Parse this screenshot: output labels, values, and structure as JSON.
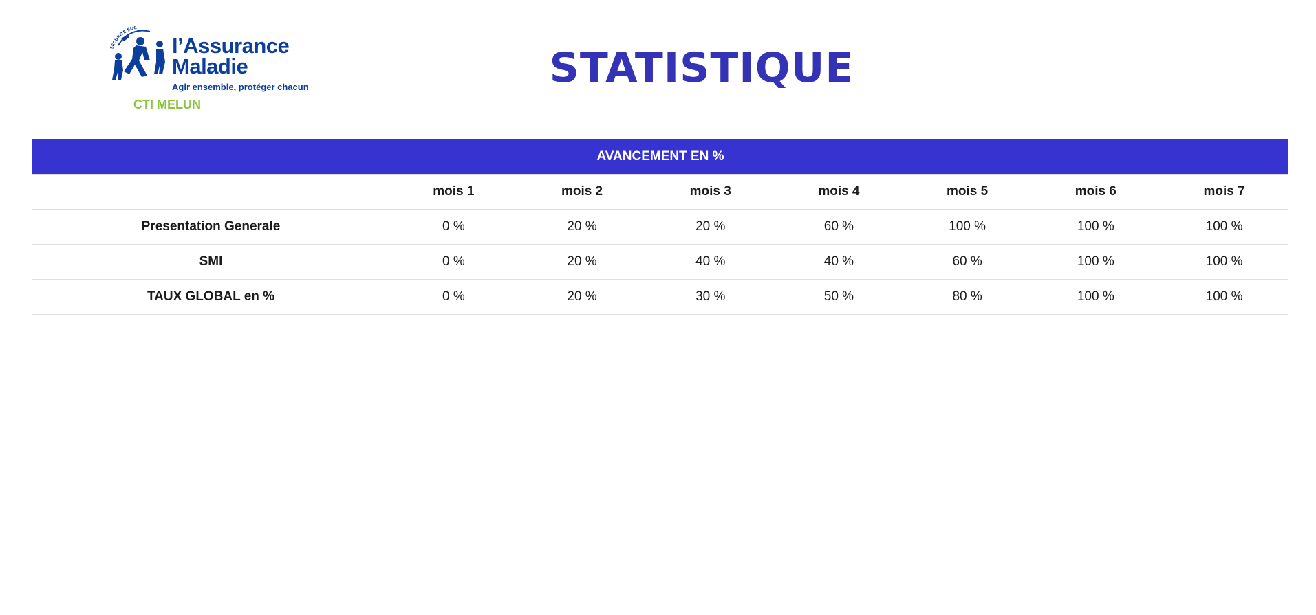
{
  "brand": {
    "name_line1": "l’Assurance",
    "name_line2": "Maladie",
    "tagline": "Agir ensemble, protéger chacun",
    "arc_text": "SÉCURITÉ SOCIALE",
    "site": "CTI MELUN"
  },
  "page": {
    "title": "STATISTIQUE"
  },
  "table": {
    "banner": "AVANCEMENT EN %",
    "corner": "",
    "columns": [
      "mois 1",
      "mois 2",
      "mois 3",
      "mois 4",
      "mois 5",
      "mois 6",
      "mois 7"
    ],
    "rows": [
      {
        "label": "Presentation Generale",
        "values": [
          "0 %",
          "20 %",
          "20 %",
          "60 %",
          "100 %",
          "100 %",
          "100 %"
        ]
      },
      {
        "label": "SMI",
        "values": [
          "0 %",
          "20 %",
          "40 %",
          "40 %",
          "60 %",
          "100 %",
          "100 %"
        ]
      },
      {
        "label": "TAUX GLOBAL en %",
        "values": [
          "0 %",
          "20 %",
          "30 %",
          "50 %",
          "80 %",
          "100 %",
          "100 %"
        ]
      }
    ]
  },
  "colors": {
    "brand_blue": "#0c3f9c",
    "title_blue": "#3433b6",
    "banner_bg": "#3633d1",
    "site_green": "#8bc540"
  }
}
